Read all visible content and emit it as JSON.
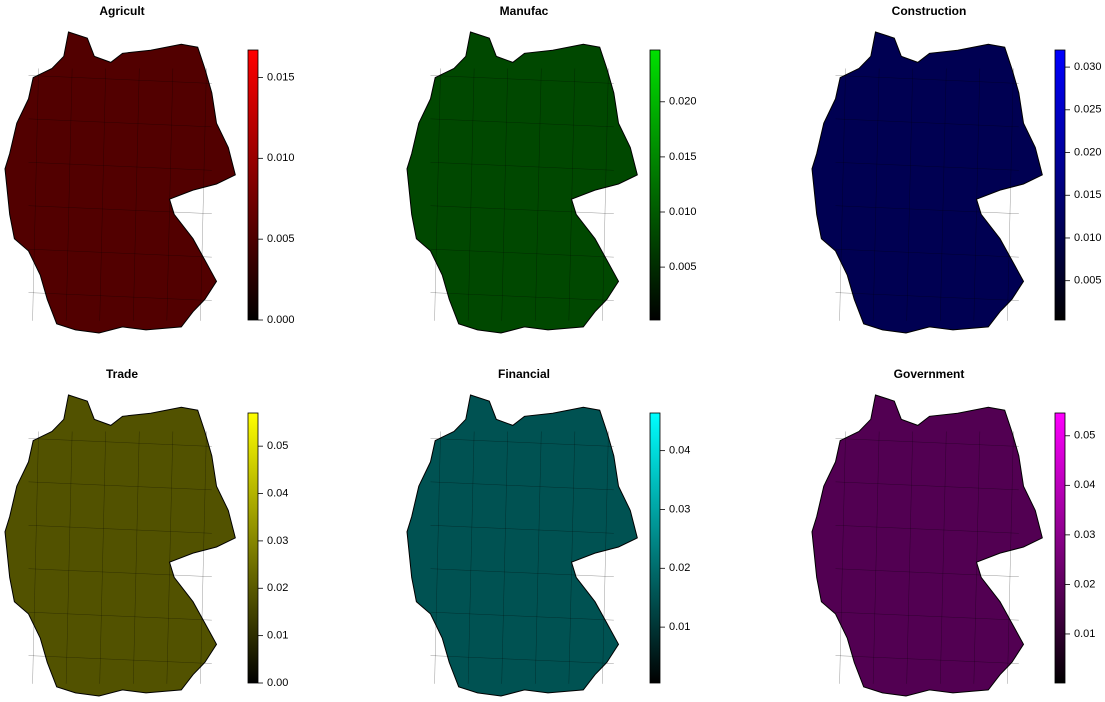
{
  "maps": [
    {
      "title": "Agricult",
      "color": "#ff0000",
      "lim": [
        0,
        0.0167
      ],
      "ticks": [
        {
          "value": 0,
          "label": "0.000"
        },
        0.005,
        {
          "value": 0.01,
          "label": "0.010"
        },
        0.015
      ]
    },
    {
      "title": "Manufac",
      "color": "#00e000",
      "lim": [
        0.0002,
        0.0247
      ],
      "ticks": [
        0.005,
        {
          "value": 0.01,
          "label": "0.010"
        },
        0.015,
        {
          "value": 0.02,
          "label": "0.020"
        }
      ]
    },
    {
      "title": "Construction",
      "color": "#0000ff",
      "lim": [
        0.0004,
        0.032
      ],
      "ticks": [
        0.005,
        {
          "value": 0.01,
          "label": "0.010"
        },
        0.015,
        {
          "value": 0.02,
          "label": "0.020"
        },
        0.025,
        {
          "value": 0.03,
          "label": "0.030"
        }
      ]
    },
    {
      "title": "Trade",
      "color": "#ffff00",
      "lim": [
        0,
        0.057
      ],
      "ticks": [
        {
          "value": 0,
          "label": "0.00"
        },
        0.01,
        0.02,
        0.03,
        0.04,
        0.05
      ]
    },
    {
      "title": "Financial",
      "color": "#00ffff",
      "lim": [
        0.0005,
        0.0464
      ],
      "ticks": [
        0.01,
        0.02,
        0.03,
        0.04
      ]
    },
    {
      "title": "Government",
      "color": "#ff00ff",
      "lim": [
        0.0001,
        0.0546
      ],
      "ticks": [
        0.01,
        0.02,
        0.03,
        0.04,
        0.05
      ]
    }
  ]
}
